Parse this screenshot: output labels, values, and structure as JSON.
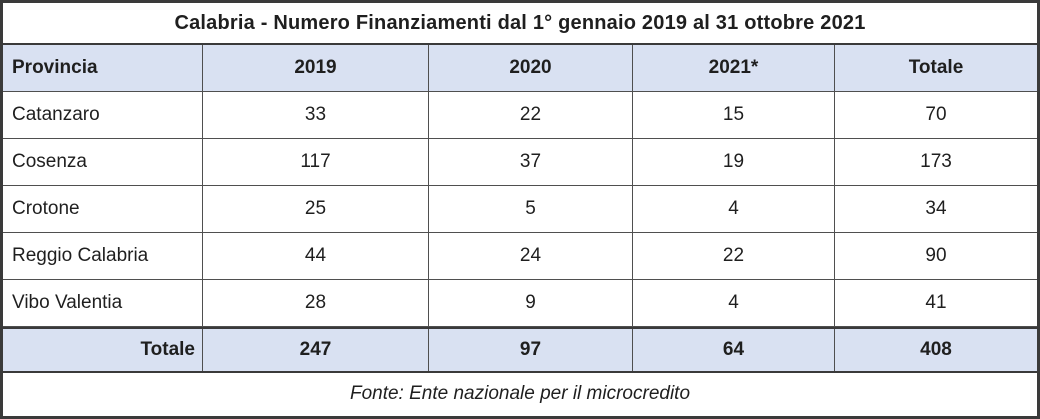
{
  "chart_data": {
    "type": "table",
    "title": "Calabria - Numero Finanziamenti dal 1° gennaio 2019 al 31 ottobre 2021",
    "columns": [
      "Provincia",
      "2019",
      "2020",
      "2021*",
      "Totale"
    ],
    "rows": [
      [
        "Catanzaro",
        33,
        22,
        15,
        70
      ],
      [
        "Cosenza",
        117,
        37,
        19,
        173
      ],
      [
        "Crotone",
        25,
        5,
        4,
        34
      ],
      [
        "Reggio Calabria",
        44,
        24,
        22,
        90
      ],
      [
        "Vibo Valentia",
        28,
        9,
        4,
        41
      ]
    ],
    "total_row": [
      "Totale",
      247,
      97,
      64,
      408
    ],
    "source": "Fonte: Ente nazionale per il microcredito"
  },
  "colors": {
    "header_fill": "#d9e1f2",
    "outer_border": "#3a3a3a",
    "inner_border": "#4f4f4f",
    "text": "#1f1f1f"
  }
}
